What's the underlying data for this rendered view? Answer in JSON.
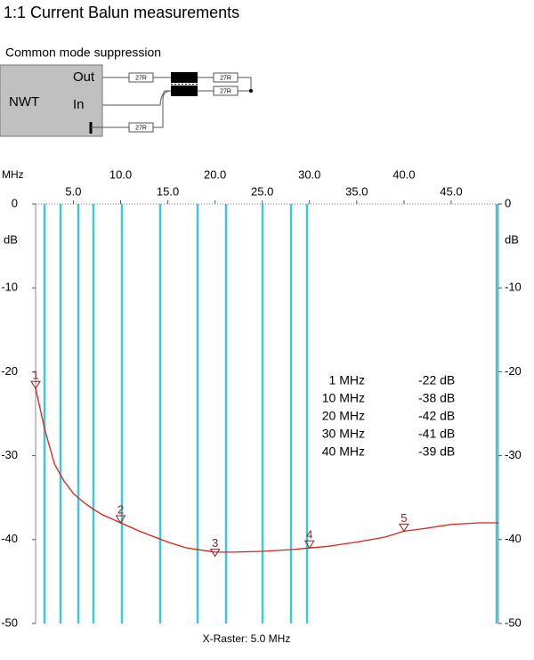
{
  "header": {
    "title": "1:1 Current Balun measurements",
    "subtitle": "Common mode suppression"
  },
  "schematic": {
    "device": "NWT",
    "out": "Out",
    "in": "In",
    "resistors": [
      "27R",
      "27R",
      "27R",
      "27R"
    ]
  },
  "chart_data": {
    "type": "line",
    "x_unit": "MHz",
    "y_unit": "dB",
    "x_raster": "X-Raster: 5.0 MHz",
    "color": "#e0201a",
    "x": [
      1,
      2,
      3,
      4,
      5,
      6,
      7,
      8,
      10,
      12,
      15,
      17,
      20,
      22,
      25,
      28,
      30,
      32,
      35,
      38,
      40,
      42,
      45,
      48,
      50
    ],
    "values": [
      -22,
      -27,
      -31,
      -33,
      -34.5,
      -35.5,
      -36.3,
      -37,
      -38,
      -39,
      -40.3,
      -41,
      -41.5,
      -41.5,
      -41.4,
      -41.2,
      -41,
      -40.8,
      -40.3,
      -39.7,
      -39,
      -38.7,
      -38.2,
      -38,
      -38
    ],
    "xlim": [
      1,
      50
    ],
    "ylim": [
      -50,
      0
    ],
    "xticks": [
      {
        "value": 5,
        "label": "5.0"
      },
      {
        "value": 10,
        "label": "10.0"
      },
      {
        "value": 15,
        "label": "15.0"
      },
      {
        "value": 20,
        "label": "20.0"
      },
      {
        "value": 25,
        "label": "25.0"
      },
      {
        "value": 30,
        "label": "30.0"
      },
      {
        "value": 35,
        "label": "35.0"
      },
      {
        "value": 40,
        "label": "40.0"
      },
      {
        "value": 45,
        "label": "45.0"
      }
    ],
    "yticks": [
      0,
      -10,
      -20,
      -30,
      -40,
      -50
    ],
    "markers": {
      "labels": [
        "1",
        "2",
        "3",
        "4",
        "5"
      ],
      "x": [
        1,
        10,
        20,
        30,
        40
      ],
      "values": [
        -22,
        -38,
        -42,
        -41,
        -39
      ]
    },
    "marker_table": [
      [
        "1 MHz",
        "-22 dB"
      ],
      [
        "10 MHz",
        "-38 dB"
      ],
      [
        "20 MHz",
        "-42 dB"
      ],
      [
        "30 MHz",
        "-41 dB"
      ],
      [
        "40 MHz",
        "-39 dB"
      ]
    ]
  }
}
